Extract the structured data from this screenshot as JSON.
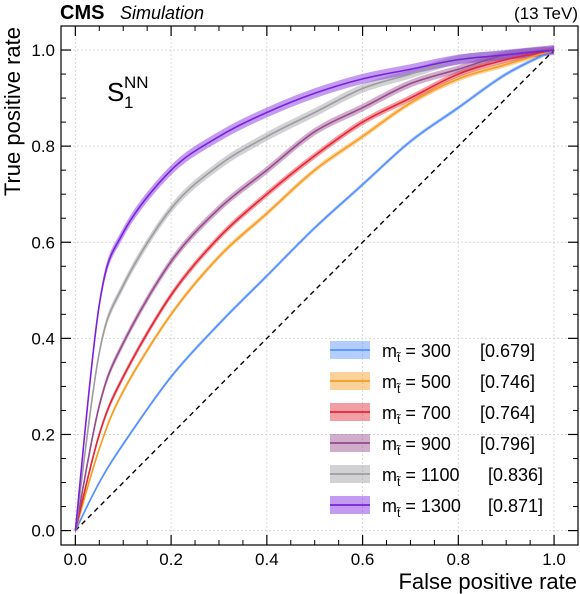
{
  "header": {
    "experiment": "CMS",
    "tag": "Simulation",
    "energy": "(13 TeV)"
  },
  "annotation": {
    "symbol": "S",
    "subscript": "1",
    "superscript": "NN"
  },
  "chart_data": {
    "type": "line",
    "xlabel": "False positive rate",
    "ylabel": "True positive rate",
    "xlim": [
      -0.03,
      1.05
    ],
    "ylim": [
      -0.03,
      1.05
    ],
    "xticks": [
      "0.0",
      "0.2",
      "0.4",
      "0.6",
      "0.8",
      "1.0"
    ],
    "yticks": [
      "0.0",
      "0.2",
      "0.4",
      "0.6",
      "0.8",
      "1.0"
    ],
    "grid": true,
    "legend_position": "bottom-right",
    "diagonal": {
      "style": "dashed",
      "color": "#000000"
    },
    "x": [
      0.0,
      0.05,
      0.1,
      0.2,
      0.3,
      0.4,
      0.5,
      0.6,
      0.7,
      0.8,
      0.9,
      1.0
    ],
    "series": [
      {
        "name": "m = 300",
        "mass": "300",
        "auc": "[0.679]",
        "color": "#5790fc",
        "values": [
          0.0,
          0.1,
          0.18,
          0.32,
          0.43,
          0.53,
          0.63,
          0.72,
          0.81,
          0.88,
          0.95,
          1.0
        ]
      },
      {
        "name": "m = 500",
        "mass": "500",
        "auc": "[0.746]",
        "color": "#f89c20",
        "values": [
          0.0,
          0.17,
          0.29,
          0.45,
          0.57,
          0.66,
          0.75,
          0.82,
          0.89,
          0.94,
          0.97,
          1.0
        ]
      },
      {
        "name": "m = 700",
        "mass": "700",
        "auc": "[0.764]",
        "color": "#e42536",
        "values": [
          0.0,
          0.2,
          0.32,
          0.49,
          0.61,
          0.7,
          0.78,
          0.85,
          0.9,
          0.95,
          0.98,
          1.0
        ]
      },
      {
        "name": "m = 900",
        "mass": "900",
        "auc": "[0.796]",
        "color": "#964a8b",
        "values": [
          0.0,
          0.26,
          0.39,
          0.56,
          0.67,
          0.75,
          0.83,
          0.88,
          0.93,
          0.96,
          0.99,
          1.0
        ]
      },
      {
        "name": "m = 1100",
        "mass": "1100",
        "auc": "[0.836]",
        "color": "#9c9ca1",
        "values": [
          0.0,
          0.37,
          0.51,
          0.67,
          0.76,
          0.82,
          0.87,
          0.92,
          0.95,
          0.98,
          0.99,
          1.0
        ]
      },
      {
        "name": "m = 1300",
        "mass": "1300",
        "auc": "[0.871]",
        "color": "#7a21dd",
        "values": [
          0.0,
          0.47,
          0.62,
          0.75,
          0.82,
          0.87,
          0.91,
          0.94,
          0.96,
          0.98,
          0.99,
          1.0
        ]
      }
    ]
  }
}
